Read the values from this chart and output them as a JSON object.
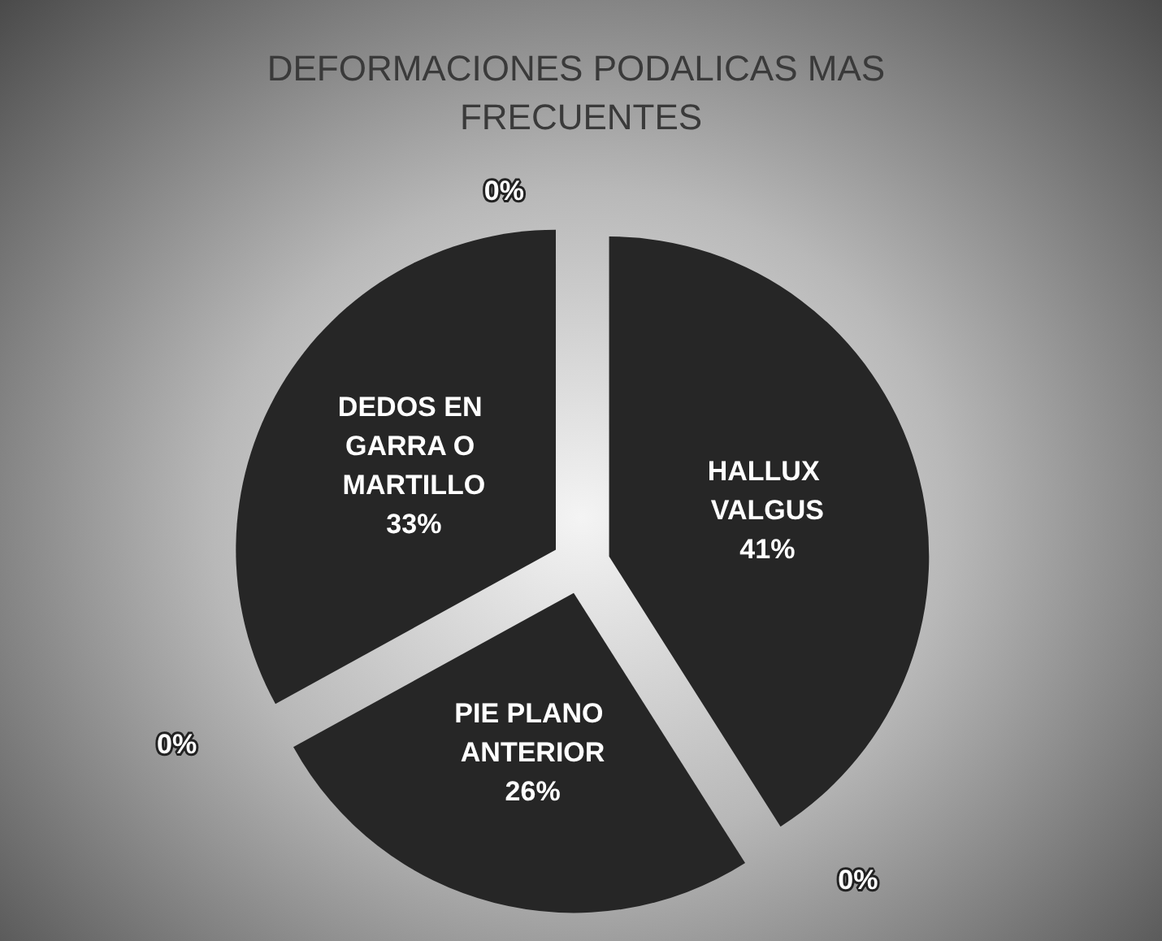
{
  "chart_data": {
    "type": "pie",
    "title": "DEFORMACIONES PODALICAS MAS FRECUENTES",
    "categories": [
      "HALLUX VALGUS",
      null,
      "PIE PLANO ANTERIOR",
      null,
      "DEDOS EN GARRA O MARTILLO",
      null
    ],
    "values": [
      41,
      0,
      26,
      0,
      33,
      0
    ],
    "value_labels": [
      "41%",
      "0%",
      "26%",
      "0%",
      "33%",
      "0%"
    ],
    "colors": [
      "#262626",
      "#262626",
      "#262626",
      "#262626",
      "#262626",
      "#262626"
    ],
    "data_labels": true,
    "legend": false
  }
}
